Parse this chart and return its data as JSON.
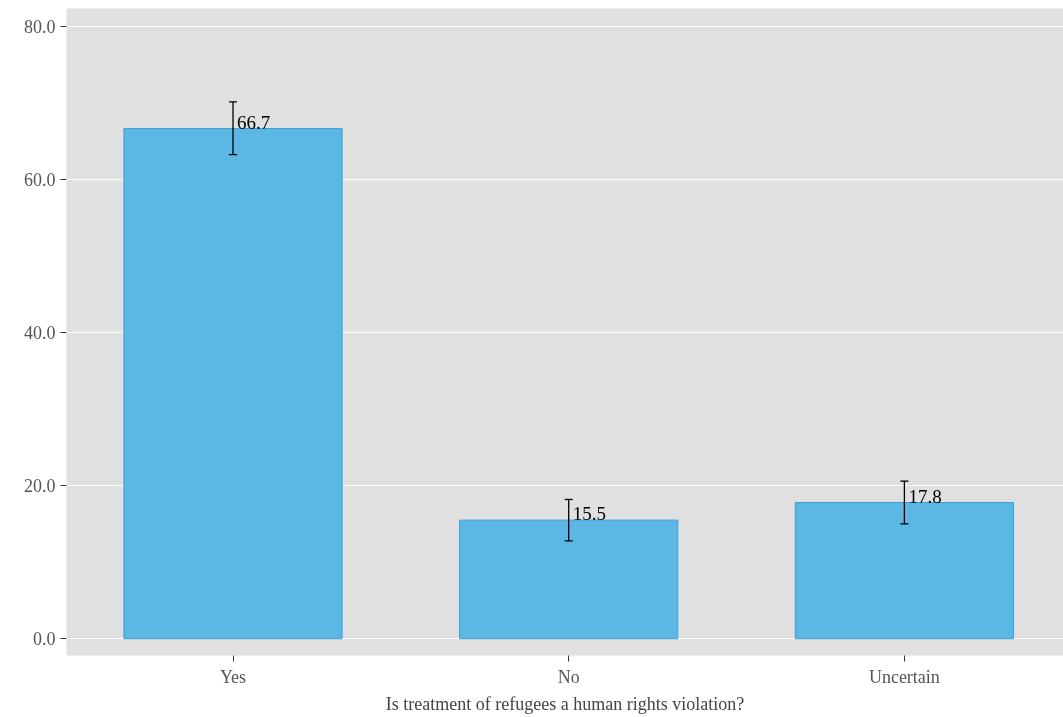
{
  "chart_data": {
    "type": "bar",
    "xlabel": "Is treatment of refugees a human rights violation?",
    "categories": [
      "Yes",
      "No",
      "Uncertain"
    ],
    "values": [
      66.7,
      15.5,
      17.8
    ],
    "color": "#5db7e4",
    "errors": [
      [
        63.3,
        70.2
      ],
      [
        12.8,
        18.2
      ],
      [
        15.0,
        20.6
      ]
    ],
    "data_labels": true,
    "ylim": [
      -2.2,
      82.4
    ],
    "yticks": [
      {
        "value": 0,
        "label": "0.0"
      },
      {
        "value": 20,
        "label": "20.0"
      },
      {
        "value": 40,
        "label": "40.0"
      },
      {
        "value": 60,
        "label": "60.0"
      },
      {
        "value": 80,
        "label": "80.0"
      }
    ],
    "grid": "y"
  }
}
